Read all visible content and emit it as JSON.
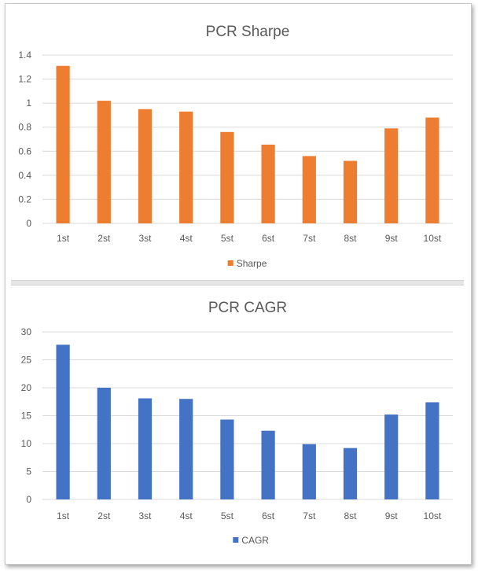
{
  "chart_data": [
    {
      "type": "bar",
      "title": "PCR Sharpe",
      "categories": [
        "1st",
        "2st",
        "3st",
        "4st",
        "5st",
        "6st",
        "7st",
        "8st",
        "9st",
        "10st"
      ],
      "series": [
        {
          "name": "Sharpe",
          "color": "#ED7D31",
          "values": [
            1.31,
            1.02,
            0.95,
            0.93,
            0.76,
            0.655,
            0.56,
            0.52,
            0.79,
            0.88
          ]
        }
      ],
      "ylim": [
        0,
        1.4
      ],
      "yticks": [
        "0",
        "0.2",
        "0.4",
        "0.6",
        "0.8",
        "1",
        "1.2",
        "1.4"
      ],
      "ytick_values": [
        0,
        0.2,
        0.4,
        0.6,
        0.8,
        1,
        1.2,
        1.4
      ],
      "grid": true,
      "legend": "bottom"
    },
    {
      "type": "bar",
      "title": "PCR CAGR",
      "categories": [
        "1st",
        "2st",
        "3st",
        "4st",
        "5st",
        "6st",
        "7st",
        "8st",
        "9st",
        "10st"
      ],
      "series": [
        {
          "name": "CAGR",
          "color": "#4472C4",
          "values": [
            27.7,
            20.0,
            18.1,
            18.0,
            14.3,
            12.3,
            9.9,
            9.2,
            15.2,
            17.4
          ]
        }
      ],
      "ylim": [
        0,
        30
      ],
      "yticks": [
        "0",
        "5",
        "10",
        "15",
        "20",
        "25",
        "30"
      ],
      "ytick_values": [
        0,
        5,
        10,
        15,
        20,
        25,
        30
      ],
      "grid": true,
      "legend": "bottom"
    }
  ]
}
